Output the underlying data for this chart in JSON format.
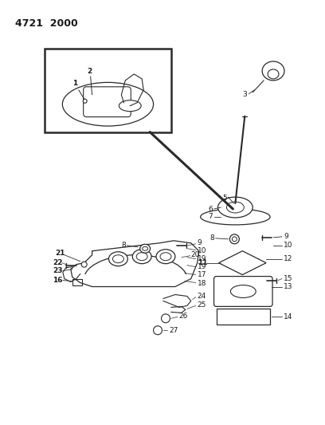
{
  "title": "4721  2000",
  "background_color": "#ffffff",
  "line_color": "#2a2a2a",
  "text_color": "#1a1a1a",
  "figsize": [
    4.08,
    5.33
  ],
  "dpi": 100
}
